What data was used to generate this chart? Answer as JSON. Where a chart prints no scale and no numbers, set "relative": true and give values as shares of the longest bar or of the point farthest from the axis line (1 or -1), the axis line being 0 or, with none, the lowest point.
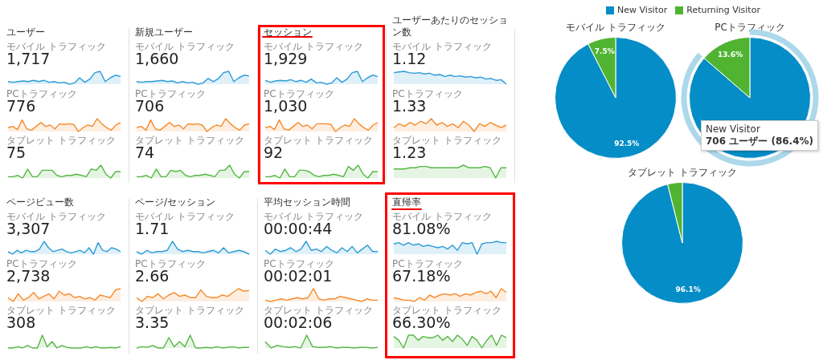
{
  "chart_data": [
    {
      "type": "other",
      "title": "ユーザー"
    },
    {
      "type": "area",
      "relative": true,
      "title": "モバイル トラフィック",
      "subtitle": "1,717",
      "categories": [
        null,
        null,
        null,
        null,
        null,
        null,
        null,
        null,
        null,
        null,
        null,
        null,
        null,
        null,
        null,
        null,
        null,
        null,
        null,
        null,
        null,
        null,
        null
      ],
      "series": [
        {
          "color": "#2b9bd6",
          "values": [
            0.2,
            0.15,
            0.2,
            0.25,
            0.2,
            0.3,
            0.2,
            0.3,
            0.15,
            0.2,
            0.1,
            0.15,
            0,
            0.1,
            0.5,
            0.15,
            0.4,
            0.9,
            1,
            0.2,
            0.5,
            0.7,
            0.6
          ]
        }
      ]
    },
    {
      "type": "area",
      "relative": true,
      "title": "PCトラフィック",
      "subtitle": "776",
      "categories": [
        null,
        null,
        null,
        null,
        null,
        null,
        null,
        null,
        null,
        null,
        null,
        null,
        null,
        null,
        null,
        null,
        null,
        null,
        null,
        null,
        null,
        null,
        null,
        null,
        null
      ],
      "series": [
        {
          "color": "#f58a2c",
          "values": [
            0.3,
            0.4,
            0.15,
            0.9,
            0.2,
            0.1,
            0.4,
            0.7,
            0.4,
            0.5,
            0.2,
            0.6,
            0.55,
            0.6,
            0.55,
            0,
            0.3,
            0.5,
            0.4,
            1,
            0.6,
            0.3,
            0.1,
            0.5,
            0.7
          ]
        }
      ]
    },
    {
      "type": "area",
      "relative": true,
      "title": "タブレット トラフィック",
      "subtitle": "75",
      "categories": [
        null,
        null,
        null,
        null,
        null,
        null,
        null,
        null,
        null,
        null,
        null,
        null,
        null,
        null,
        null,
        null,
        null,
        null,
        null,
        null,
        null,
        null,
        null,
        null
      ],
      "series": [
        {
          "color": "#55b844",
          "values": [
            0.1,
            0.1,
            0.2,
            0,
            0.7,
            0.1,
            0.1,
            0.6,
            0.6,
            0.6,
            0.2,
            0.1,
            0.2,
            0.2,
            0.3,
            0.2,
            0.1,
            0.7,
            0.6,
            1,
            0.3,
            0,
            0.5,
            0.5
          ]
        }
      ]
    },
    {
      "type": "other",
      "title": "新規ユーザー"
    },
    {
      "type": "area",
      "relative": true,
      "title": "モバイル トラフィック",
      "subtitle": "1,660",
      "categories": [
        null,
        null,
        null,
        null,
        null,
        null,
        null,
        null,
        null,
        null,
        null,
        null,
        null,
        null,
        null,
        null,
        null,
        null,
        null,
        null,
        null,
        null,
        null
      ],
      "series": [
        {
          "color": "#2b9bd6",
          "values": [
            0.2,
            0.15,
            0.2,
            0.2,
            0.25,
            0.3,
            0.2,
            0.25,
            0.1,
            0.2,
            0.1,
            0.15,
            0,
            0.1,
            0.45,
            0.2,
            0.45,
            0.9,
            1,
            0.2,
            0.5,
            0.7,
            0.65
          ]
        }
      ]
    },
    {
      "type": "area",
      "relative": true,
      "title": "PCトラフィック",
      "subtitle": "706",
      "categories": [
        null,
        null,
        null,
        null,
        null,
        null,
        null,
        null,
        null,
        null,
        null,
        null,
        null,
        null,
        null,
        null,
        null,
        null,
        null,
        null,
        null,
        null,
        null,
        null,
        null
      ],
      "series": [
        {
          "color": "#f58a2c",
          "values": [
            0.3,
            0.4,
            0.1,
            0.9,
            0.2,
            0.1,
            0.4,
            0.7,
            0.4,
            0.5,
            0.2,
            0.6,
            0.55,
            0.6,
            0.5,
            0,
            0.3,
            0.5,
            0.4,
            1,
            0.6,
            0.3,
            0.1,
            0.5,
            0.6
          ]
        }
      ]
    },
    {
      "type": "area",
      "relative": true,
      "title": "タブレット トラフィック",
      "subtitle": "74",
      "categories": [
        null,
        null,
        null,
        null,
        null,
        null,
        null,
        null,
        null,
        null,
        null,
        null,
        null,
        null,
        null,
        null,
        null,
        null,
        null,
        null,
        null,
        null,
        null,
        null
      ],
      "series": [
        {
          "color": "#55b844",
          "values": [
            0.1,
            0.1,
            0.2,
            0,
            0.7,
            0.1,
            0.1,
            0.6,
            0.5,
            0.6,
            0.2,
            0.1,
            0.2,
            0.2,
            0.3,
            0.2,
            0.1,
            0.6,
            0.6,
            1,
            0.3,
            0,
            0.5,
            0.5
          ]
        }
      ]
    },
    {
      "type": "other",
      "title": "セッション"
    },
    {
      "type": "area",
      "relative": true,
      "title": "モバイル トラフィック",
      "subtitle": "1,929",
      "categories": [
        null,
        null,
        null,
        null,
        null,
        null,
        null,
        null,
        null,
        null,
        null,
        null,
        null,
        null,
        null,
        null,
        null,
        null,
        null,
        null,
        null,
        null,
        null
      ],
      "series": [
        {
          "color": "#2b9bd6",
          "values": [
            0.3,
            0.15,
            0.25,
            0.3,
            0.25,
            0.35,
            0.2,
            0.3,
            0.15,
            0.4,
            0.1,
            0.15,
            0,
            0.1,
            0.5,
            0.15,
            0.4,
            0.9,
            1,
            0.2,
            0.5,
            0.7,
            0.6
          ]
        }
      ]
    },
    {
      "type": "area",
      "relative": true,
      "title": "PCトラフィック",
      "subtitle": "1,030",
      "categories": [
        null,
        null,
        null,
        null,
        null,
        null,
        null,
        null,
        null,
        null,
        null,
        null,
        null,
        null,
        null,
        null,
        null,
        null,
        null,
        null,
        null,
        null,
        null,
        null,
        null
      ],
      "series": [
        {
          "color": "#f58a2c",
          "values": [
            0.3,
            0.4,
            0.15,
            0.9,
            0.2,
            0.1,
            0.4,
            0.7,
            0.4,
            0.5,
            0.2,
            0.6,
            0.6,
            0.6,
            0.55,
            0,
            0.3,
            0.5,
            0.4,
            1,
            0.6,
            0.3,
            0.1,
            0.5,
            0.7
          ]
        }
      ]
    },
    {
      "type": "area",
      "relative": true,
      "title": "タブレット トラフィック",
      "subtitle": "92",
      "categories": [
        null,
        null,
        null,
        null,
        null,
        null,
        null,
        null,
        null,
        null,
        null,
        null,
        null,
        null,
        null,
        null,
        null,
        null,
        null,
        null,
        null,
        null,
        null,
        null
      ],
      "series": [
        {
          "color": "#55b844",
          "values": [
            0.1,
            0.1,
            0.2,
            0,
            0.7,
            0.1,
            0.1,
            0.6,
            0.6,
            0.5,
            0.2,
            0.1,
            0.2,
            0.2,
            0.3,
            0.2,
            0.1,
            0.9,
            0.6,
            1,
            0.3,
            0,
            0.5,
            0.5
          ]
        }
      ]
    },
    {
      "type": "other",
      "title": "ユーザーあたりのセッション数"
    },
    {
      "type": "area",
      "relative": true,
      "title": "モバイル トラフィック",
      "subtitle": "1.12",
      "categories": [
        null,
        null,
        null,
        null,
        null,
        null,
        null,
        null,
        null,
        null,
        null,
        null,
        null,
        null,
        null,
        null,
        null,
        null,
        null,
        null,
        null,
        null,
        null
      ],
      "series": [
        {
          "color": "#2b9bd6",
          "values": [
            0.9,
            0.95,
            1,
            0.9,
            0.85,
            0.9,
            0.8,
            0.85,
            0.7,
            0.75,
            0.6,
            0.7,
            0.6,
            0.65,
            0.55,
            0.6,
            0.5,
            0.55,
            0.4,
            0.45,
            0.3,
            0.35,
            0
          ]
        }
      ]
    },
    {
      "type": "area",
      "relative": true,
      "title": "PCトラフィック",
      "subtitle": "1.33",
      "categories": [
        null,
        null,
        null,
        null,
        null,
        null,
        null,
        null,
        null,
        null,
        null,
        null,
        null,
        null,
        null,
        null,
        null,
        null,
        null,
        null,
        null,
        null
      ],
      "series": [
        {
          "color": "#f58a2c",
          "values": [
            0.3,
            0.6,
            0.4,
            0.7,
            0.5,
            0.8,
            0.6,
            1,
            0.5,
            0.7,
            0.4,
            0.6,
            0.3,
            0.8,
            0.5,
            0,
            0.6,
            0.4,
            0.7,
            0.5,
            0.3,
            0.5
          ]
        }
      ]
    },
    {
      "type": "area",
      "relative": true,
      "title": "タブレット トラフィック",
      "subtitle": "1.23",
      "categories": [
        null,
        null,
        null,
        null,
        null,
        null,
        null,
        null,
        null,
        null,
        null,
        null,
        null,
        null,
        null,
        null,
        null,
        null,
        null,
        null,
        null,
        null
      ],
      "series": [
        {
          "color": "#55b844",
          "values": [
            0.7,
            0.7,
            0.7,
            0.8,
            0.8,
            0.9,
            0.9,
            0.8,
            0.8,
            0.8,
            0.8,
            0.8,
            0.8,
            1,
            0.8,
            0.8,
            0.8,
            0.9,
            0.8,
            0,
            0.8,
            0.8
          ]
        }
      ]
    },
    {
      "type": "other",
      "title": "ページビュー数"
    },
    {
      "type": "area",
      "relative": true,
      "title": "モバイル トラフィック",
      "subtitle": "3,307",
      "categories": [
        null,
        null,
        null,
        null,
        null,
        null,
        null,
        null,
        null,
        null,
        null,
        null,
        null,
        null,
        null,
        null,
        null,
        null,
        null,
        null,
        null,
        null,
        null,
        null,
        null,
        null
      ],
      "series": [
        {
          "color": "#2b9bd6",
          "values": [
            0.2,
            0,
            0.3,
            0.1,
            0.3,
            0.2,
            0.2,
            0.4,
            1,
            0.5,
            0.2,
            0.3,
            0.4,
            0.2,
            0.1,
            0.2,
            0.3,
            0.1,
            0.5,
            0,
            0.9,
            0.3,
            0.2,
            0.5,
            0.4,
            0.2
          ]
        }
      ]
    },
    {
      "type": "area",
      "relative": true,
      "title": "PCトラフィック",
      "subtitle": "2,738",
      "categories": [
        null,
        null,
        null,
        null,
        null,
        null,
        null,
        null,
        null,
        null,
        null,
        null,
        null,
        null,
        null,
        null,
        null,
        null,
        null,
        null,
        null,
        null,
        null
      ],
      "series": [
        {
          "color": "#f58a2c",
          "values": [
            0.3,
            0,
            0.6,
            0.1,
            0.3,
            0.7,
            0.2,
            0.4,
            0.6,
            0.2,
            0.8,
            0.5,
            0.6,
            0.3,
            0.4,
            0.2,
            0.3,
            0.1,
            0.5,
            0.4,
            0.3,
            0.9,
            1
          ]
        }
      ]
    },
    {
      "type": "area",
      "relative": true,
      "title": "タブレット トラフィック",
      "subtitle": "308",
      "categories": [
        null,
        null,
        null,
        null,
        null,
        null,
        null,
        null,
        null,
        null,
        null,
        null,
        null,
        null,
        null,
        null,
        null,
        null,
        null,
        null,
        null,
        null,
        null,
        null
      ],
      "series": [
        {
          "color": "#55b844",
          "values": [
            0,
            0,
            0.1,
            0,
            0.2,
            0,
            0,
            1,
            0.1,
            0.5,
            0,
            0.2,
            0.05,
            0,
            0,
            0,
            0.1,
            0,
            0.1,
            0,
            0,
            0.05,
            0,
            0.1
          ]
        }
      ]
    },
    {
      "type": "other",
      "title": "ページ/セッション"
    },
    {
      "type": "area",
      "relative": true,
      "title": "モバイル トラフィック",
      "subtitle": "1.71",
      "categories": [
        null,
        null,
        null,
        null,
        null,
        null,
        null,
        null,
        null,
        null,
        null,
        null,
        null,
        null,
        null,
        null,
        null,
        null,
        null,
        null,
        null,
        null,
        null
      ],
      "series": [
        {
          "color": "#2b9bd6",
          "values": [
            0.2,
            0,
            0.3,
            0.1,
            0.2,
            0.2,
            0.3,
            1,
            0.4,
            0.2,
            0.3,
            0.2,
            0.2,
            0.1,
            0.2,
            0.3,
            0.1,
            0.5,
            0.1,
            0.2,
            0.3,
            0.2,
            0
          ]
        }
      ]
    },
    {
      "type": "area",
      "relative": true,
      "title": "PCトラフィック",
      "subtitle": "2.66",
      "categories": [
        null,
        null,
        null,
        null,
        null,
        null,
        null,
        null,
        null,
        null,
        null,
        null,
        null,
        null,
        null,
        null,
        null,
        null,
        null,
        null,
        null,
        null
      ],
      "series": [
        {
          "color": "#f58a2c",
          "values": [
            0.3,
            0,
            0.4,
            0.3,
            0.6,
            0.2,
            0.5,
            0.7,
            0.4,
            0.5,
            0.3,
            0.3,
            0.9,
            0.4,
            0.3,
            0.3,
            0.5,
            0.4,
            0.7,
            1,
            0.8,
            0.85
          ]
        }
      ]
    },
    {
      "type": "area",
      "relative": true,
      "title": "タブレット トラフィック",
      "subtitle": "3.35",
      "categories": [
        null,
        null,
        null,
        null,
        null,
        null,
        null,
        null,
        null,
        null,
        null,
        null,
        null,
        null,
        null,
        null,
        null,
        null,
        null,
        null,
        null,
        null
      ],
      "series": [
        {
          "color": "#55b844",
          "values": [
            0,
            0.1,
            0.05,
            0.2,
            0,
            0,
            0.8,
            0.1,
            0.5,
            0.1,
            1,
            0,
            0,
            0.05,
            0,
            0.1,
            0,
            0.05,
            0.1,
            0,
            0.05,
            0.05
          ]
        }
      ]
    },
    {
      "type": "other",
      "title": "平均セッション時間"
    },
    {
      "type": "area",
      "relative": true,
      "title": "モバイル トラフィック",
      "subtitle": "00:00:44",
      "categories": [
        null,
        null,
        null,
        null,
        null,
        null,
        null,
        null,
        null,
        null,
        null,
        null,
        null,
        null,
        null,
        null,
        null,
        null,
        null,
        null,
        null,
        null,
        null
      ],
      "series": [
        {
          "color": "#2b9bd6",
          "values": [
            0.3,
            0,
            0.4,
            0.2,
            0.3,
            0.5,
            0.2,
            0.4,
            1,
            0.3,
            0.4,
            0.2,
            0.6,
            0.3,
            0.1,
            0.5,
            0.2,
            0.6,
            0.1,
            0.4,
            0.7,
            0.2,
            0.2
          ]
        }
      ]
    },
    {
      "type": "area",
      "relative": true,
      "title": "PCトラフィック",
      "subtitle": "00:02:01",
      "categories": [
        null,
        null,
        null,
        null,
        null,
        null,
        null,
        null,
        null,
        null,
        null,
        null,
        null,
        null,
        null,
        null,
        null,
        null,
        null,
        null,
        null,
        null
      ],
      "series": [
        {
          "color": "#f58a2c",
          "values": [
            0.1,
            0,
            0.1,
            0.2,
            0.1,
            0.2,
            0.3,
            0.2,
            0.3,
            1,
            0.2,
            0.1,
            0.2,
            0.2,
            0.4,
            0.3,
            0.2,
            0.1,
            0,
            0.2,
            0.1,
            0.1
          ]
        }
      ]
    },
    {
      "type": "area",
      "relative": true,
      "title": "タブレット トラフィック",
      "subtitle": "00:02:06",
      "categories": [
        null,
        null,
        null,
        null,
        null,
        null,
        null,
        null,
        null,
        null,
        null,
        null,
        null,
        null,
        null,
        null,
        null,
        null,
        null,
        null
      ],
      "series": [
        {
          "color": "#55b844",
          "values": [
            0.5,
            0,
            0.2,
            0.1,
            0.05,
            0.1,
            0,
            1,
            0.1,
            0.05,
            0.05,
            0.1,
            0,
            0.05,
            0.05,
            0,
            0.05,
            0.05,
            0,
            0.05
          ]
        }
      ]
    },
    {
      "type": "other",
      "title": "直帰率"
    },
    {
      "type": "area",
      "relative": true,
      "title": "モバイル トラフィック",
      "subtitle": "81.08%",
      "categories": [
        null,
        null,
        null,
        null,
        null,
        null,
        null,
        null,
        null,
        null,
        null,
        null,
        null,
        null,
        null,
        null,
        null,
        null,
        null,
        null,
        null,
        null,
        null,
        null
      ],
      "series": [
        {
          "color": "#2b9bd6",
          "values": [
            0.8,
            0.9,
            0.7,
            0.9,
            0.7,
            0.8,
            0.6,
            0.7,
            0.6,
            0.5,
            0.6,
            0.4,
            0.7,
            0.3,
            0.9,
            0.8,
            0.9,
            0,
            0.8,
            0.9,
            0.9,
            1,
            0.9,
            0.9
          ]
        }
      ]
    },
    {
      "type": "area",
      "relative": true,
      "title": "PCトラフィック",
      "subtitle": "67.18%",
      "categories": [
        null,
        null,
        null,
        null,
        null,
        null,
        null,
        null,
        null,
        null,
        null,
        null,
        null,
        null,
        null,
        null,
        null,
        null,
        null,
        null,
        null,
        null,
        null
      ],
      "series": [
        {
          "color": "#f58a2c",
          "values": [
            0.3,
            0.2,
            0.1,
            0.1,
            0,
            0.3,
            0.1,
            0.5,
            0.3,
            0.5,
            0.6,
            0.5,
            0.6,
            0.4,
            0.6,
            0.5,
            0.7,
            0.8,
            0.6,
            0.8,
            0.3,
            1,
            0.7
          ]
        }
      ]
    },
    {
      "type": "area",
      "relative": true,
      "title": "タブレット トラフィック",
      "subtitle": "66.30%",
      "categories": [
        null,
        null,
        null,
        null,
        null,
        null,
        null,
        null,
        null,
        null,
        null,
        null,
        null,
        null,
        null,
        null,
        null,
        null,
        null,
        null,
        null,
        null,
        null,
        null
      ],
      "series": [
        {
          "color": "#55b844",
          "values": [
            0.9,
            0.6,
            0,
            1,
            1,
            0.6,
            0.9,
            0.8,
            0.8,
            1,
            0.6,
            0.9,
            0.5,
            1,
            0.7,
            0.2,
            0.9,
            0.6,
            0,
            0.6,
            1,
            0.2,
            1,
            0.8
          ]
        }
      ]
    },
    {
      "type": "pie",
      "title": "モバイル トラフィック",
      "legend": "top",
      "categories": [
        "New Visitor",
        "Returning Visitor"
      ],
      "values": [
        92.5,
        7.5
      ],
      "colors": [
        "#058dc7",
        "#50b432"
      ],
      "value_labels": [
        "92.5%",
        "7.5%"
      ]
    },
    {
      "type": "pie",
      "title": "PCトラフィック",
      "categories": [
        null,
        null
      ],
      "values": [
        86.4,
        13.6
      ],
      "colors": [
        "#058dc7",
        "#50b432"
      ],
      "value_labels": [
        null,
        "13.6%"
      ],
      "annotations": [
        "New Visitor",
        "706 ユーザー (86.4%)"
      ]
    },
    {
      "type": "pie",
      "title": "タブレット トラフィック",
      "categories": [
        null,
        null
      ],
      "values": [
        96.1,
        3.9
      ],
      "colors": [
        "#058dc7",
        "#50b432"
      ],
      "value_labels": [
        "96.1%",
        null
      ]
    }
  ]
}
